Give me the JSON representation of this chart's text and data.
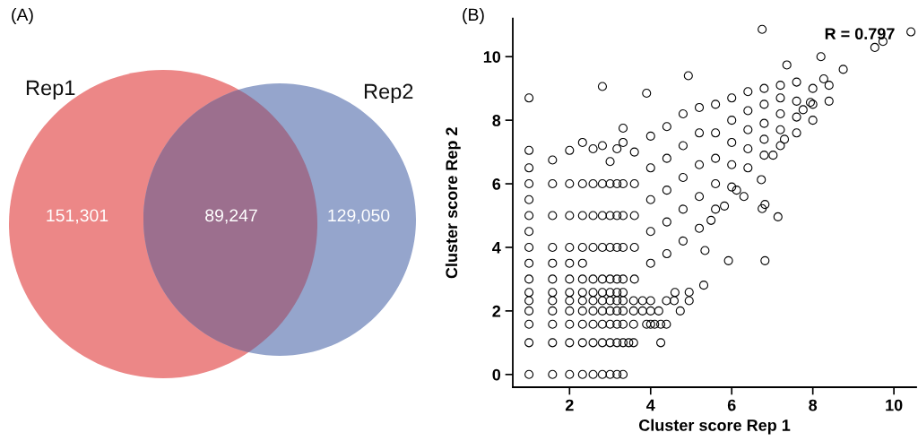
{
  "chart_data": [
    {
      "type": "other",
      "title": "(A)",
      "categories": [
        "Rep1",
        null,
        "Rep2"
      ],
      "values": [
        151301,
        89247,
        129050
      ],
      "colors": [
        "#ec8787",
        "#9c6f8e",
        "#95a5cc"
      ],
      "value_labels": [
        "151,301",
        "89,247",
        "129,050"
      ]
    },
    {
      "type": "scatter",
      "title": "(B)",
      "xlabel": "Cluster score Rep 1",
      "ylabel": "Cluster score Rep 2",
      "color": "#000000",
      "marker": "circle",
      "xlim": [
        0.6,
        10.55
      ],
      "ylim": [
        -0.4,
        11.2
      ],
      "xticks": [
        2,
        4,
        6,
        8,
        10
      ],
      "yticks": [
        0,
        2,
        4,
        6,
        8,
        10
      ],
      "annotations": [
        "R = 0.797"
      ],
      "x": [
        1,
        1,
        1,
        1,
        1,
        1,
        1,
        1,
        1,
        1,
        1,
        1,
        1,
        1,
        1,
        1,
        1.58,
        1.58,
        1.58,
        1.58,
        1.58,
        1.58,
        1.58,
        1.58,
        1.58,
        1.58,
        1.58,
        1.58,
        2,
        2,
        2,
        2,
        2,
        2,
        2,
        2,
        2,
        2,
        2,
        2,
        2.32,
        2.32,
        2.32,
        2.32,
        2.32,
        2.32,
        2.32,
        2.32,
        2.32,
        2.32,
        2.32,
        2.32,
        2.58,
        2.58,
        2.58,
        2.58,
        2.58,
        2.58,
        2.58,
        2.58,
        2.58,
        2.58,
        2.58,
        2.81,
        2.81,
        2.81,
        2.81,
        2.81,
        2.81,
        2.81,
        2.81,
        2.81,
        2.81,
        2.81,
        2.81,
        3,
        3,
        3,
        3,
        3,
        3,
        3,
        3,
        3,
        3,
        3,
        3.17,
        3.17,
        3.17,
        3.17,
        3.17,
        3.17,
        3.17,
        3.17,
        3.17,
        3.17,
        3.17,
        3.32,
        3.32,
        3.32,
        3.32,
        3.32,
        3.32,
        3.32,
        3.32,
        3.32,
        3.32,
        3.32,
        3.32,
        3.46,
        3.58,
        4.25,
        3.58,
        3.9,
        4,
        4.1,
        4.25,
        4.39,
        3.58,
        3.8,
        4,
        4.2,
        3.58,
        3.8,
        4,
        4.39,
        4.58,
        4.95,
        4.6,
        4.95,
        3.6,
        3.6,
        3.6,
        3.6,
        3.6,
        4,
        4,
        4,
        4,
        4,
        4.4,
        4.4,
        4.4,
        4.4,
        4.4,
        4.8,
        4.8,
        4.8,
        4.8,
        4.8,
        5.2,
        5.2,
        5.2,
        5.2,
        5.2,
        5.6,
        5.6,
        5.6,
        5.6,
        5.6,
        6,
        6,
        6,
        6,
        6,
        6.4,
        6.4,
        6.4,
        6.4,
        6.4,
        6.8,
        6.8,
        6.8,
        6.8,
        6.8,
        7.2,
        7.2,
        7.2,
        7.2,
        7.2,
        7.6,
        7.6,
        7.6,
        7.6,
        8,
        8,
        8,
        8.4,
        8.4,
        6.75,
        10.42,
        9.53,
        9.73,
        8.2,
        8.75,
        7.36,
        4.93,
        3.9,
        5.92,
        6.82,
        5.31,
        4.73,
        7.14,
        6.75,
        6.82,
        6.73,
        6.3,
        6.12,
        7.3,
        7.02,
        8.27,
        7.94,
        7.76,
        5.82,
        5.49,
        5.34
      ],
      "values": [
        0,
        1,
        1.58,
        2,
        2.32,
        2.58,
        3,
        3.5,
        4,
        4.5,
        5,
        5.5,
        6,
        6.5,
        7.05,
        8.7,
        0,
        1,
        1.58,
        2,
        2.32,
        2.58,
        3,
        3.5,
        4,
        5,
        6,
        6.75,
        0,
        1,
        1.58,
        2,
        2.32,
        2.58,
        3,
        3.5,
        4,
        5,
        6,
        7.05,
        0,
        1,
        1.58,
        2,
        2.32,
        2.58,
        3,
        3.5,
        4,
        5,
        6,
        7.3,
        0,
        1,
        1.58,
        2,
        2.32,
        2.58,
        3,
        4,
        5,
        6,
        7.1,
        0,
        1,
        1.58,
        2,
        2.32,
        2.58,
        3,
        4,
        5,
        6,
        7.2,
        9.06,
        0,
        1,
        1.58,
        2,
        2.32,
        2.58,
        3,
        4,
        5,
        6,
        6.7,
        0,
        1,
        1.58,
        2,
        2.32,
        2.58,
        3,
        4,
        5,
        6,
        7.1,
        0,
        1,
        1.58,
        2,
        2.32,
        2.58,
        3,
        4,
        5,
        6,
        7.3,
        7.75,
        1,
        1,
        1,
        1.58,
        1.58,
        1.58,
        1.58,
        1.58,
        1.58,
        2,
        2,
        2,
        2,
        2.32,
        2.32,
        2.32,
        2.32,
        2.32,
        2.32,
        2.58,
        2.59,
        3,
        4,
        5,
        6,
        7,
        3.5,
        4.5,
        5.5,
        6.5,
        7.5,
        3.8,
        4.8,
        5.8,
        6.8,
        7.8,
        4.2,
        5.2,
        6.2,
        7.2,
        8.2,
        4.6,
        5.6,
        6.6,
        7.6,
        8.4,
        5.2,
        6,
        6.8,
        7.6,
        8.5,
        5.9,
        6.6,
        7.3,
        8,
        8.7,
        6.5,
        7.1,
        7.7,
        8.3,
        8.9,
        6.9,
        7.4,
        7.9,
        8.5,
        9,
        7.2,
        7.7,
        8.2,
        8.7,
        9.1,
        7.6,
        8.1,
        8.6,
        9.2,
        8,
        8.5,
        9,
        8.6,
        9.1,
        10.86,
        10.78,
        10.29,
        10.48,
        10,
        9.6,
        9.74,
        9.4,
        8.85,
        3.58,
        3.58,
        2.81,
        2,
        4.96,
        5.22,
        5.35,
        6.13,
        5.6,
        5.8,
        7.4,
        6.9,
        9.3,
        8.56,
        8.33,
        5.3,
        4.85,
        3.9
      ]
    }
  ]
}
